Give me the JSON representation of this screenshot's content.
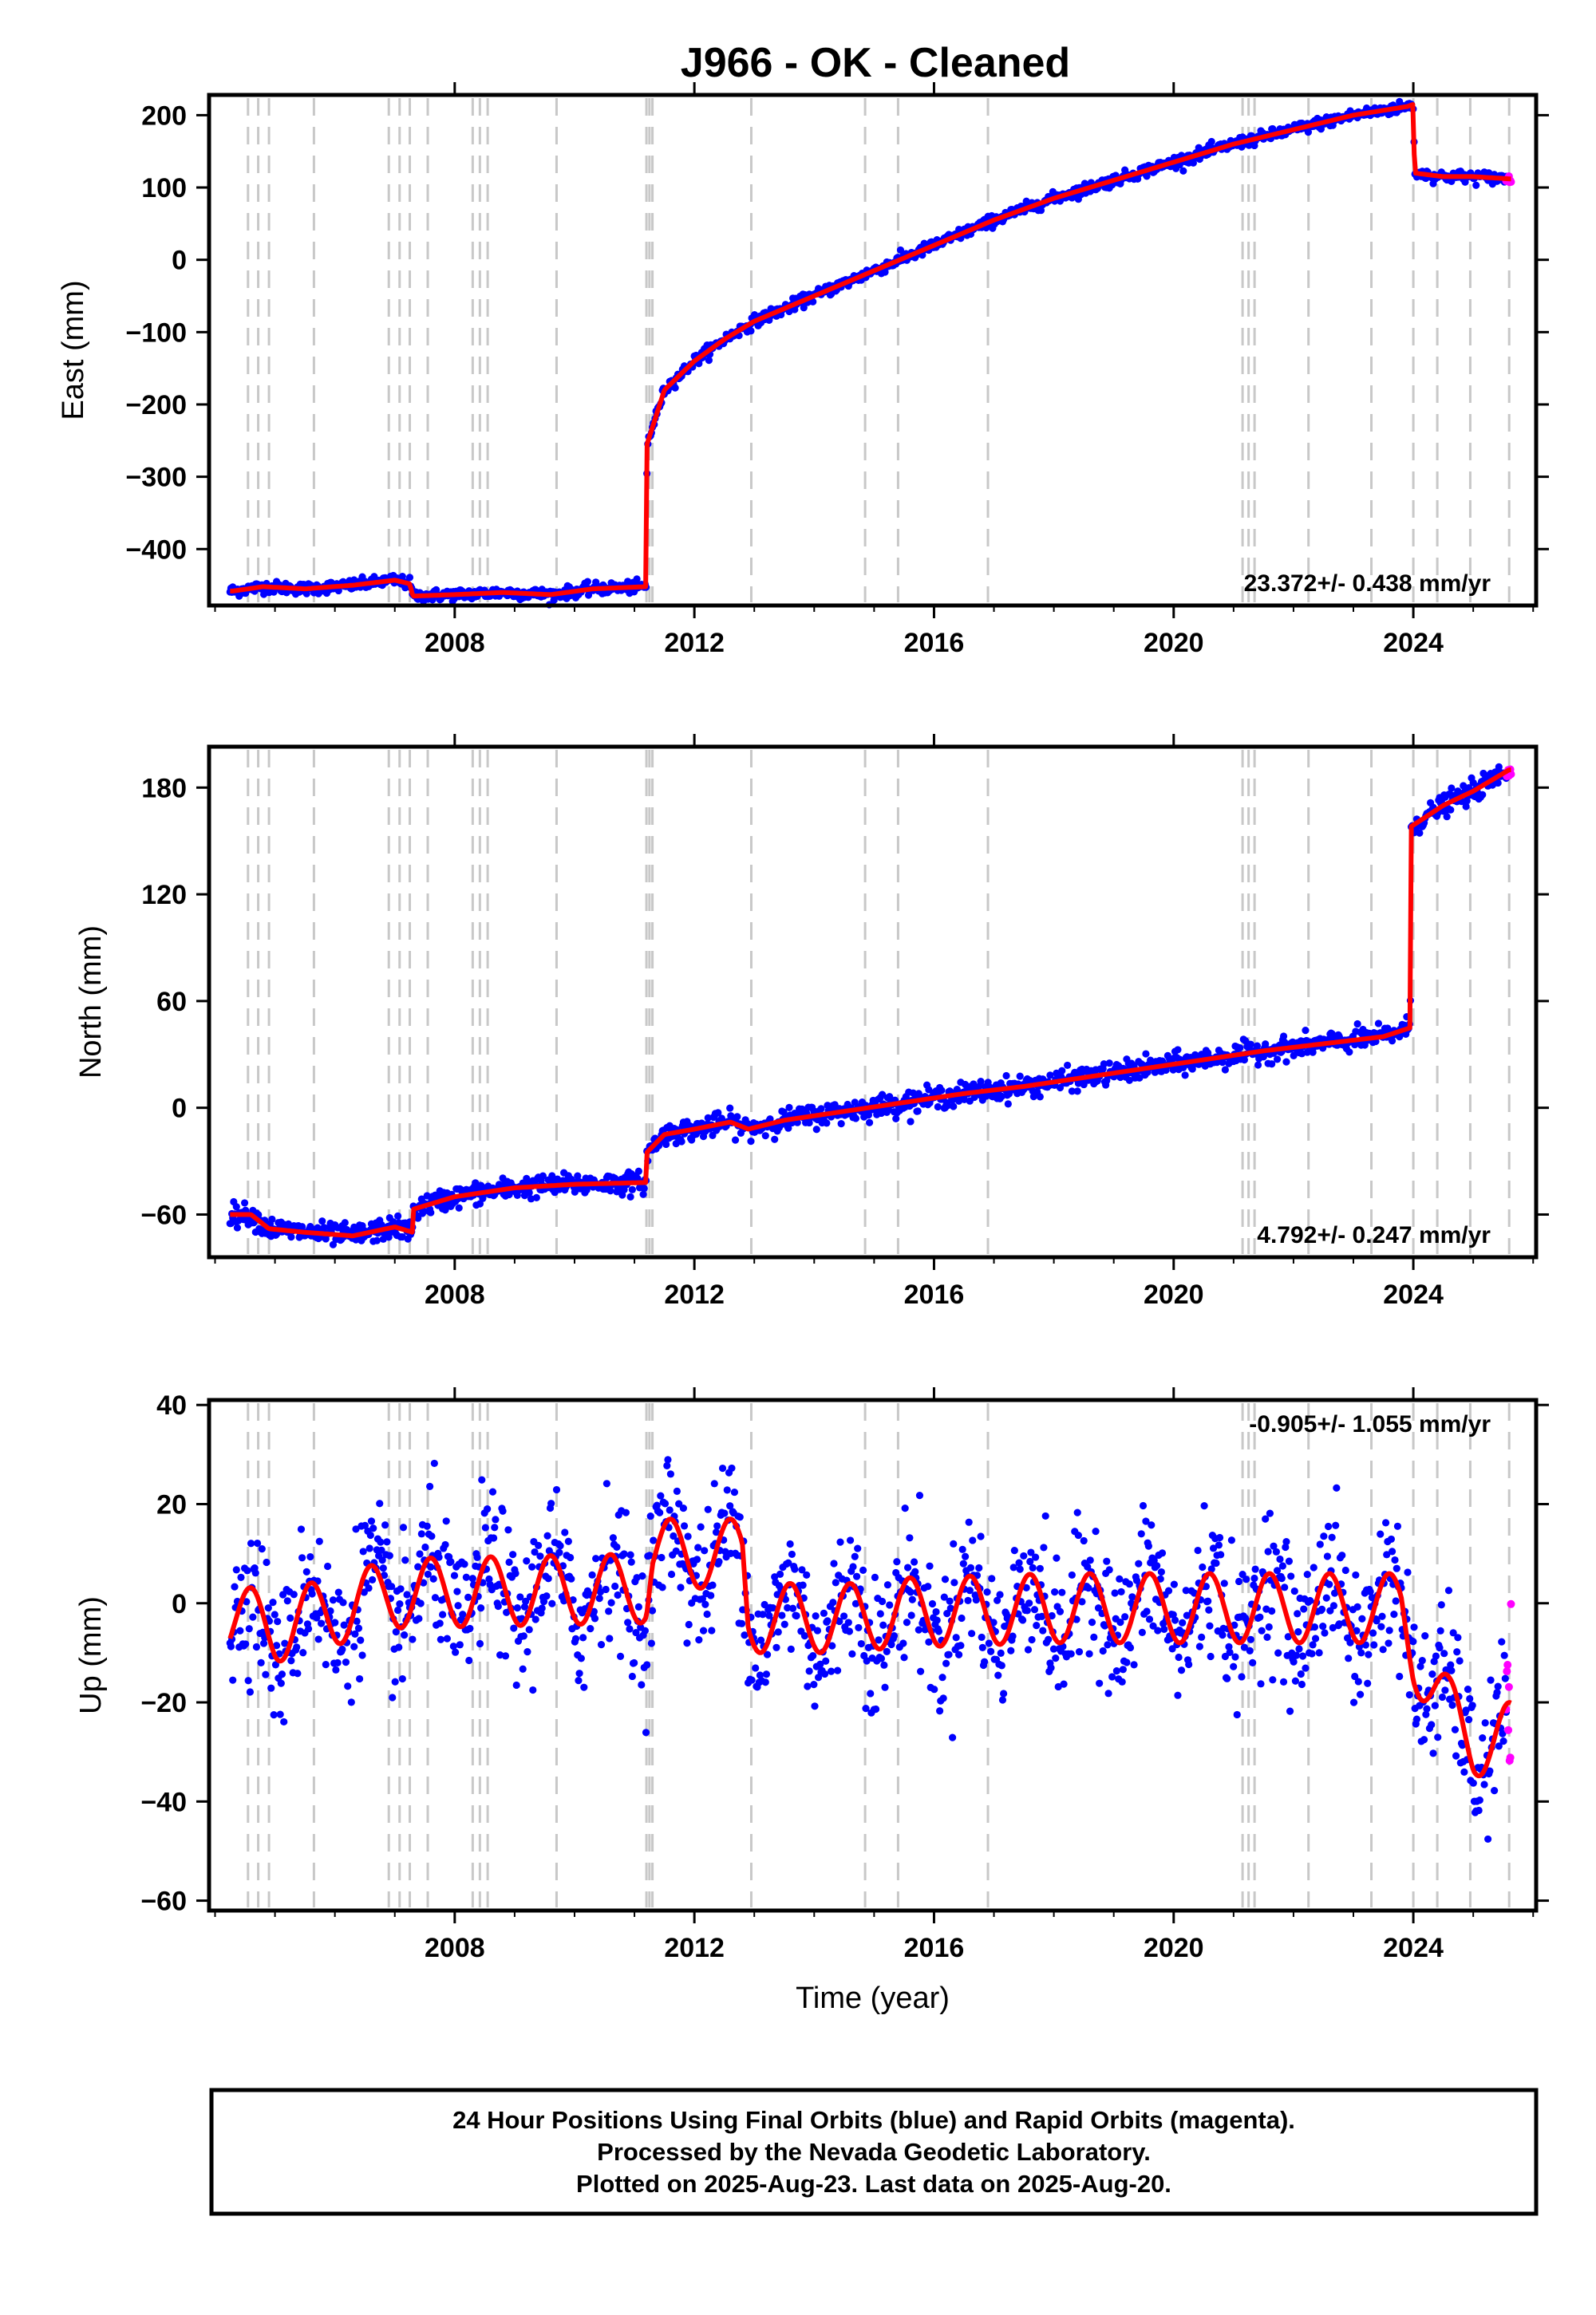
{
  "title": "J966  - OK - Cleaned",
  "colors": {
    "final": "#0000ff",
    "rapid": "#ff00ff",
    "model": "#ff0000",
    "event_lines": "#c8c8c8",
    "frame": "#000000"
  },
  "footer": {
    "lines": [
      "24 Hour Positions Using Final Orbits (blue) and Rapid Orbits (magenta).",
      "Processed by the Nevada Geodetic Laboratory.",
      "Plotted on 2025-Aug-23. Last data on 2025-Aug-20."
    ]
  },
  "chart_data": [
    {
      "type": "scatter",
      "panel": "east",
      "ylabel": "East (mm)",
      "xlabel": "",
      "xlim": [
        2003.9,
        2026.05
      ],
      "ylim": [
        -478,
        228
      ],
      "xticks": [
        2008,
        2012,
        2016,
        2020,
        2024
      ],
      "xtick_labels": [
        "2008",
        "2012",
        "2016",
        "2020",
        "2024"
      ],
      "yticks": [
        -400,
        -300,
        -200,
        -100,
        0,
        100,
        200
      ],
      "ytick_labels": [
        "−400",
        "−300",
        "−200",
        "−100",
        "0",
        "100",
        "200"
      ],
      "rate_label": "23.372+/- 0.438 mm/yr",
      "model_x": [
        2004.3,
        2004.8,
        2005.5,
        2006.3,
        2007.0,
        2007.25,
        2007.3,
        2008.0,
        2008.8,
        2009.6,
        2010.3,
        2011.2,
        2011.21,
        2011.5,
        2012.0,
        2012.5,
        2013.0,
        2014.0,
        2015.0,
        2016.0,
        2017.0,
        2018.0,
        2019.0,
        2020.0,
        2021.0,
        2022.0,
        2023.0,
        2023.9,
        2024.0,
        2024.02,
        2024.5,
        2025.0,
        2025.6
      ],
      "model_y": [
        -458,
        -452,
        -455,
        -450,
        -443,
        -448,
        -465,
        -463,
        -460,
        -463,
        -455,
        -452,
        -255,
        -180,
        -140,
        -110,
        -85,
        -50,
        -15,
        20,
        55,
        85,
        110,
        135,
        160,
        180,
        200,
        212,
        215,
        120,
        115,
        115,
        112
      ],
      "final_x_start": 2004.25,
      "final_x_end": 2025.55,
      "rapid_x_start": 2025.55,
      "rapid_x_end": 2025.63,
      "scatter_mm": 4
    },
    {
      "type": "scatter",
      "panel": "north",
      "ylabel": "North (mm)",
      "xlabel": "",
      "xlim": [
        2003.9,
        2026.05
      ],
      "ylim": [
        -84,
        203
      ],
      "xticks": [
        2008,
        2012,
        2016,
        2020,
        2024
      ],
      "xtick_labels": [
        "2008",
        "2012",
        "2016",
        "2020",
        "2024"
      ],
      "yticks": [
        -60,
        0,
        60,
        120,
        180
      ],
      "ytick_labels": [
        "−60",
        "0",
        "60",
        "120",
        "180"
      ],
      "rate_label": "4.792+/- 0.247 mm/yr",
      "model_x": [
        2004.3,
        2004.6,
        2004.9,
        2005.5,
        2006.3,
        2007.0,
        2007.3,
        2007.31,
        2008.0,
        2009.0,
        2010.0,
        2011.2,
        2011.21,
        2011.5,
        2012.0,
        2012.6,
        2012.9,
        2013.5,
        2014.5,
        2015.5,
        2016.5,
        2017.5,
        2018.5,
        2019.5,
        2020.5,
        2021.5,
        2022.5,
        2023.5,
        2023.95,
        2023.96,
        2024.5,
        2025.0,
        2025.6
      ],
      "model_y": [
        -60,
        -60,
        -68,
        -70,
        -72,
        -67,
        -70,
        -57,
        -50,
        -45,
        -43,
        -42,
        -25,
        -15,
        -12,
        -8,
        -12,
        -7,
        -2,
        3,
        8,
        12,
        17,
        22,
        27,
        32,
        36,
        40,
        45,
        158,
        170,
        178,
        190
      ],
      "final_x_start": 2004.25,
      "final_x_end": 2025.55,
      "rapid_x_start": 2025.55,
      "rapid_x_end": 2025.63,
      "scatter_mm": 3
    },
    {
      "type": "scatter",
      "panel": "up",
      "ylabel": "Up (mm)",
      "xlabel": "Time (year)",
      "xlim": [
        2003.9,
        2026.05
      ],
      "ylim": [
        -62,
        41
      ],
      "xticks": [
        2008,
        2012,
        2016,
        2020,
        2024
      ],
      "xtick_labels": [
        "2008",
        "2012",
        "2016",
        "2020",
        "2024"
      ],
      "yticks": [
        -60,
        -40,
        -20,
        0,
        20,
        40
      ],
      "ytick_labels": [
        "−60",
        "−40",
        "−20",
        "0",
        "20",
        "40"
      ],
      "rate_label": "-0.905+/- 1.055 mm/yr",
      "model_base_x": [
        2004.3,
        2005.0,
        2007.0,
        2011.2,
        2011.3,
        2012.8,
        2012.9,
        2014.8,
        2015.2,
        2018.0,
        2020.0,
        2023.8,
        2024.0,
        2024.6,
        2025.0,
        2025.6
      ],
      "model_base_y": [
        -3,
        -5,
        2,
        3,
        10,
        10,
        -3,
        -3,
        -2,
        -1,
        -1,
        -1,
        -10,
        -22,
        -28,
        -27
      ],
      "seasonal_amp_mm": 7,
      "final_x_start": 2004.25,
      "final_x_end": 2025.55,
      "rapid_x_start": 2025.55,
      "rapid_x_end": 2025.63,
      "scatter_mm": 7
    }
  ],
  "event_lines_x": [
    2004.55,
    2004.72,
    2004.9,
    2005.65,
    2006.9,
    2007.08,
    2007.25,
    2007.55,
    2008.3,
    2008.42,
    2008.55,
    2009.7,
    2011.2,
    2011.25,
    2011.3,
    2012.95,
    2014.85,
    2015.4,
    2016.9,
    2021.15,
    2021.25,
    2021.35,
    2022.25,
    2023.3,
    2024.0,
    2024.4,
    2024.95,
    2025.6
  ]
}
